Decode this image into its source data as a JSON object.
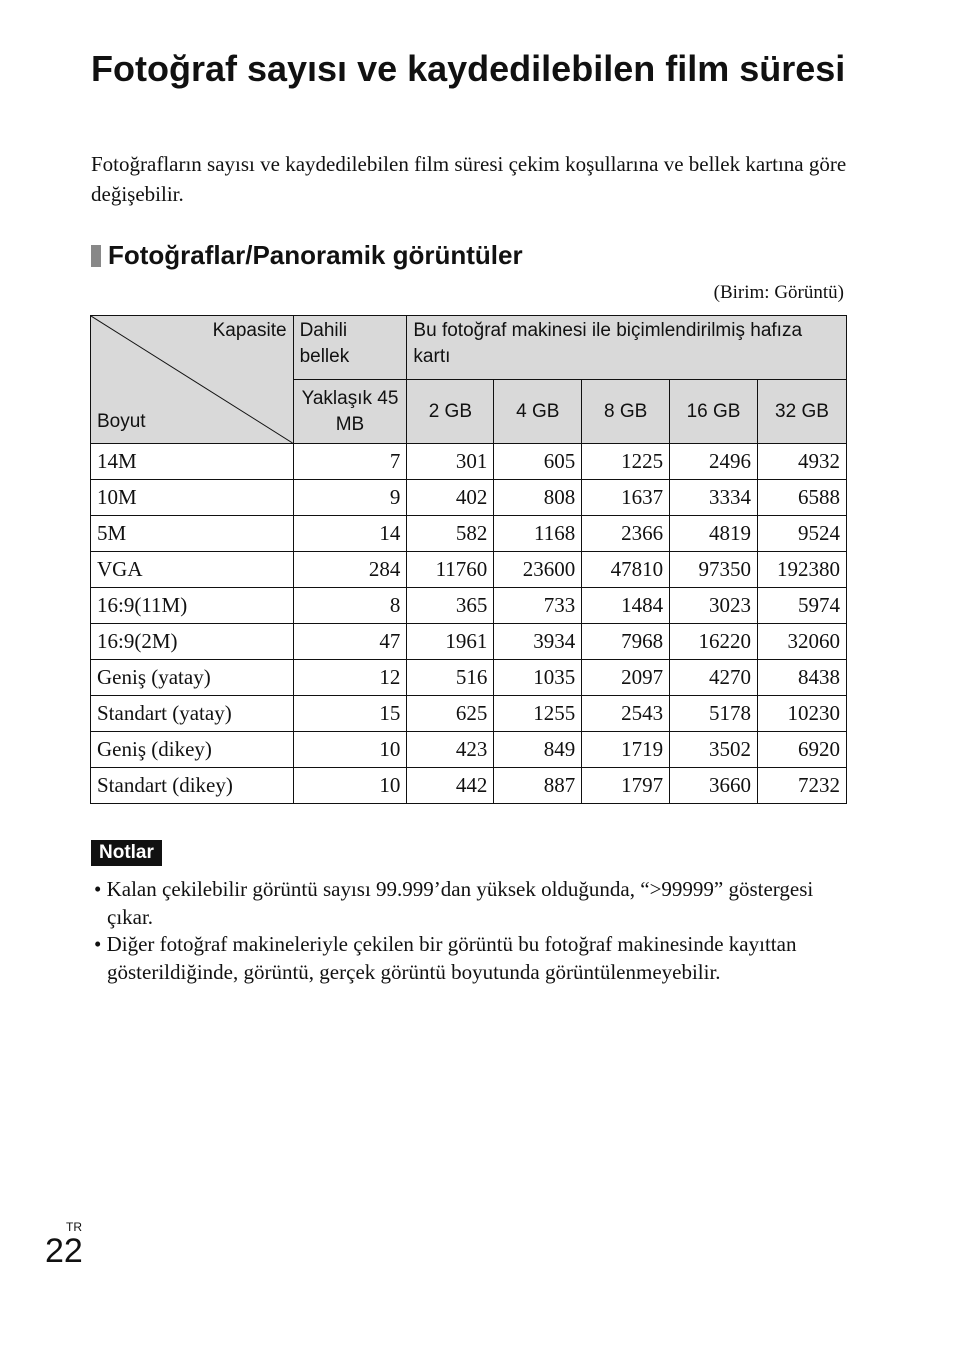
{
  "title": "Fotoğraf sayısı ve kaydedilebilen film süresi",
  "intro": "Fotoğrafların sayısı ve kaydedilebilen film süresi çekim koşullarına ve bellek kartına göre değişebilir.",
  "section_title": "Fotoğraflar/Panoramik görüntüler",
  "unit_note": "(Birim: Görüntü)",
  "table": {
    "corner_top": "Kapasite",
    "corner_bottom": "Boyut",
    "internal": "Dahili bellek",
    "card": "Bu fotoğraf makinesi ile biçimlendirilmiş hafıza kartı",
    "internal_size": "Yaklaşık 45 MB",
    "card_sizes": [
      "2 GB",
      "4 GB",
      "8 GB",
      "16 GB",
      "32 GB"
    ],
    "rows": [
      [
        "14M",
        "7",
        "301",
        "605",
        "1225",
        "2496",
        "4932"
      ],
      [
        "10M",
        "9",
        "402",
        "808",
        "1637",
        "3334",
        "6588"
      ],
      [
        "5M",
        "14",
        "582",
        "1168",
        "2366",
        "4819",
        "9524"
      ],
      [
        "VGA",
        "284",
        "11760",
        "23600",
        "47810",
        "97350",
        "192380"
      ],
      [
        "16:9(11M)",
        "8",
        "365",
        "733",
        "1484",
        "3023",
        "5974"
      ],
      [
        "16:9(2M)",
        "47",
        "1961",
        "3934",
        "7968",
        "16220",
        "32060"
      ],
      [
        "Geniş (yatay)",
        "12",
        "516",
        "1035",
        "2097",
        "4270",
        "8438"
      ],
      [
        "Standart (yatay)",
        "15",
        "625",
        "1255",
        "2543",
        "5178",
        "10230"
      ],
      [
        "Geniş (dikey)",
        "10",
        "423",
        "849",
        "1719",
        "3502",
        "6920"
      ],
      [
        "Standart (dikey)",
        "10",
        "442",
        "887",
        "1797",
        "3660",
        "7232"
      ]
    ]
  },
  "notes_label": "Notlar",
  "notes": [
    "• Kalan çekilebilir görüntü sayısı 99.999’dan yüksek olduğunda, “>99999” göstergesi çıkar.",
    "• Diğer fotoğraf makineleriyle çekilen bir görüntü bu fotoğraf makinesinde kayıttan gösterildiğinde, görüntü, gerçek görüntü boyutunda görüntülenmeyebilir."
  ],
  "page_lang": "TR",
  "page_number": "22"
}
